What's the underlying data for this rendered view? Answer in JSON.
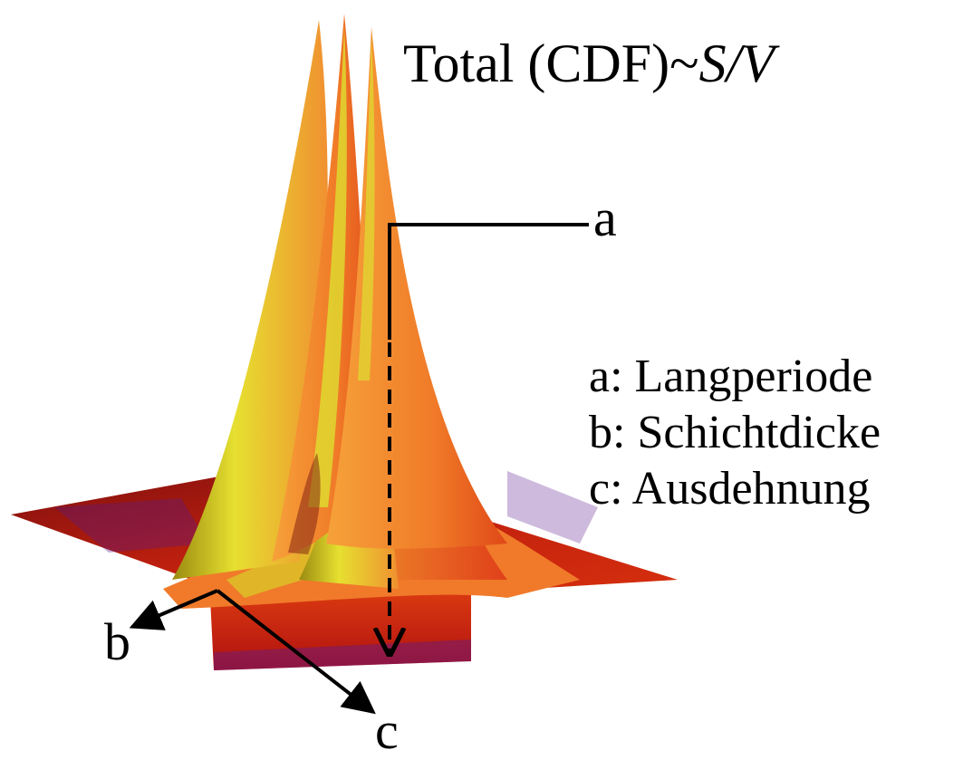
{
  "title": {
    "prefix": "Total (CDF)~",
    "italic": "S/V"
  },
  "labels": {
    "a": "a",
    "b": "b",
    "c": "c"
  },
  "legend": [
    "a: Langperiode",
    "b: Schichtdicke",
    "c: Ausdehnung"
  ],
  "colors": {
    "peak_yellow": "#d8d820",
    "surface_orange": "#f28a2a",
    "surface_red": "#c8200e",
    "base_dark_red": "#8a1010",
    "shadow_purple": "#5a1a8a"
  }
}
